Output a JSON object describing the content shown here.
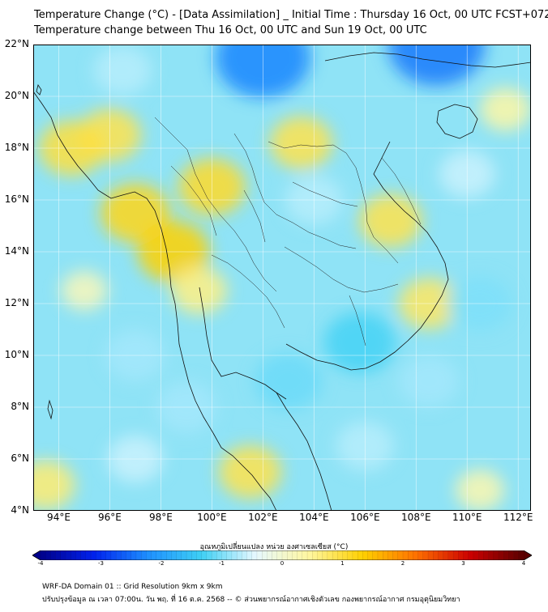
{
  "title_line1": "Temperature Change (°C) - [Data Assimilation] _ Initial Time : Thursday 16 Oct, 00 UTC FCST+072",
  "title_line2": "Temperature change between Thu 16 Oct, 00 UTC and Sun 19 Oct, 00 UTC",
  "map": {
    "lat_labels": [
      "22°N",
      "20°N",
      "18°N",
      "16°N",
      "14°N",
      "12°N",
      "10°N",
      "8°N",
      "6°N",
      "4°N"
    ],
    "lon_labels": [
      "94°E",
      "96°E",
      "98°E",
      "100°E",
      "102°E",
      "104°E",
      "106°E",
      "108°E",
      "110°E",
      "112°E"
    ],
    "lat_range": [
      4,
      22
    ],
    "lon_range": [
      93,
      112.5
    ],
    "base_color": "#8fe3f6",
    "field_blobs": [
      {
        "lon": 96.0,
        "lat": 18.5,
        "value": 0.9
      },
      {
        "lon": 94.5,
        "lat": 18.0,
        "value": 1.0
      },
      {
        "lon": 97.0,
        "lat": 15.5,
        "value": 1.2
      },
      {
        "lon": 98.5,
        "lat": 14.0,
        "value": 1.3
      },
      {
        "lon": 100.0,
        "lat": 16.5,
        "value": 1.1
      },
      {
        "lon": 99.5,
        "lat": 12.5,
        "value": 0.6
      },
      {
        "lon": 103.5,
        "lat": 18.2,
        "value": 0.9
      },
      {
        "lon": 107.0,
        "lat": 15.2,
        "value": 0.9
      },
      {
        "lon": 108.5,
        "lat": 12.0,
        "value": 0.8
      },
      {
        "lon": 95.0,
        "lat": 12.5,
        "value": 0.2
      },
      {
        "lon": 93.5,
        "lat": 5.0,
        "value": 0.7
      },
      {
        "lon": 101.5,
        "lat": 5.5,
        "value": 0.9
      },
      {
        "lon": 111.5,
        "lat": 19.5,
        "value": 0.4
      },
      {
        "lon": 110.5,
        "lat": 4.8,
        "value": 0.3
      },
      {
        "lon": 102.0,
        "lat": 21.5,
        "value": -2.3
      },
      {
        "lon": 108.8,
        "lat": 22.0,
        "value": -2.4
      },
      {
        "lon": 105.8,
        "lat": 10.5,
        "value": -1.3
      },
      {
        "lon": 103.0,
        "lat": 9.0,
        "value": -1.1
      },
      {
        "lon": 110.5,
        "lat": 12.0,
        "value": -1.0
      },
      {
        "lon": 108.5,
        "lat": 9.0,
        "value": -0.8
      },
      {
        "lon": 99.0,
        "lat": 8.0,
        "value": -0.8
      },
      {
        "lon": 97.0,
        "lat": 10.0,
        "value": -0.8
      },
      {
        "lon": 104.0,
        "lat": 16.0,
        "value": -0.7
      },
      {
        "lon": 110.0,
        "lat": 17.0,
        "value": -0.6
      },
      {
        "lon": 96.5,
        "lat": 21.0,
        "value": -0.7
      },
      {
        "lon": 106.0,
        "lat": 6.5,
        "value": -0.7
      },
      {
        "lon": 97.0,
        "lat": 6.0,
        "value": -0.6
      }
    ]
  },
  "colorbar": {
    "title": "อุณหภูมิเปลี่ยนแปลง หน่วย องศาเซลเซียส (°C)",
    "min": -4,
    "max": 4,
    "tick_labels": [
      "-4",
      "-3",
      "-2",
      "-1",
      "0",
      "1",
      "2",
      "3",
      "4"
    ],
    "color_stops": [
      "#00008b",
      "#0022ee",
      "#1e90ff",
      "#3fd0f5",
      "#e6f8ff",
      "#fff7a0",
      "#ffd000",
      "#ff7000",
      "#cc0000",
      "#5a0000"
    ]
  },
  "footer_line1": "WRF-DA Domain 01 :: Grid Resolution 9km x 9km",
  "footer_line2": "ปรับปรุงข้อมูล ณ เวลา 07:00น. วัน พฤ. ที่ 16 ต.ค. 2568 -- © ส่วนพยากรณ์อากาศเชิงตัวเลข กองพยากรณ์อากาศ กรมอุตุนิยมวิทยา"
}
